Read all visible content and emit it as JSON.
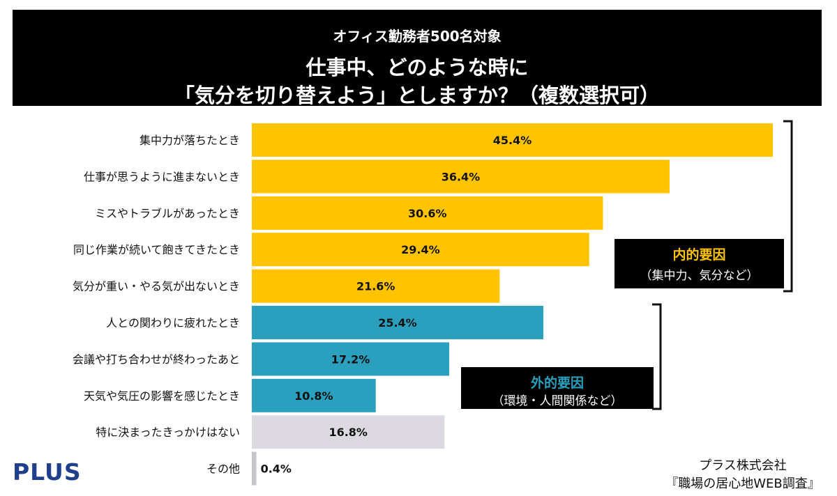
{
  "header": {
    "subtitle": "オフィス勤務者500名対象",
    "title_line1": "仕事中、どのような時に",
    "title_line2": "「気分を切り替えよう」としますか？（複数選択可）"
  },
  "colors": {
    "internal": "#FFC300",
    "external": "#2AA0BE",
    "none": "#DCDAE0",
    "other": "#C8C6CC",
    "internal_label": "#FFC300",
    "external_label": "#2AA0BE"
  },
  "chart_data": {
    "type": "bar",
    "orientation": "horizontal",
    "unit": "%",
    "xlim": [
      0,
      45.4
    ],
    "categories": [
      "集中力が落ちたとき",
      "仕事が思うように進まないとき",
      "ミスやトラブルがあったとき",
      "同じ作業が続いて飽きてきたとき",
      "気分が重い・やる気が出ないとき",
      "人との関わりに疲れたとき",
      "会議や打ち合わせが終わったあと",
      "天気や気圧の影響を感じたとき",
      "特に決まったきっかけはない",
      "その他"
    ],
    "values": [
      45.4,
      36.4,
      30.6,
      29.4,
      21.6,
      25.4,
      17.2,
      10.8,
      16.8,
      0.4
    ],
    "value_labels": [
      "45.4%",
      "36.4%",
      "30.6%",
      "29.4%",
      "21.6%",
      "25.4%",
      "17.2%",
      "10.8%",
      "16.8%",
      "0.4%"
    ],
    "groups": [
      "internal",
      "internal",
      "internal",
      "internal",
      "internal",
      "external",
      "external",
      "external",
      "none",
      "other"
    ]
  },
  "annotations": {
    "internal_title": "内的要因",
    "internal_desc": "（集中力、気分など）",
    "external_title": "外的要因",
    "external_desc": "（環境・人間関係など）"
  },
  "logo": "PLUS",
  "credit": {
    "company": "プラス株式会社",
    "survey": "『職場の居心地WEB調査』"
  }
}
